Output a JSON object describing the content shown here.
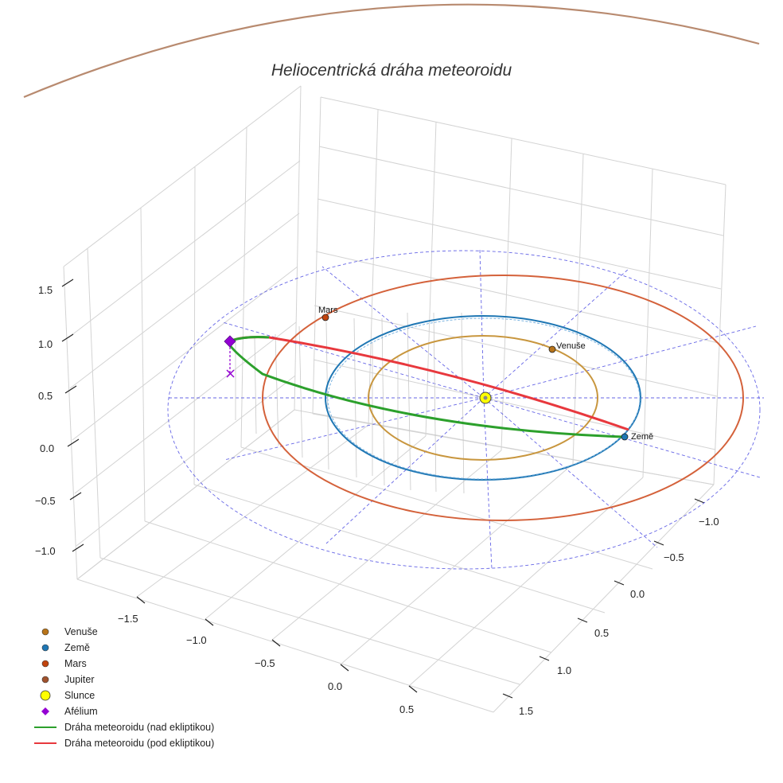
{
  "chart_data": {
    "type": "line3d",
    "title": "Heliocentrická dráha meteoroidu",
    "x_ticks": [
      "−1.5",
      "−1.0",
      "−0.5",
      "0.0",
      "0.5"
    ],
    "y_ticks": [
      "−1.0",
      "−0.5",
      "0.0",
      "0.5",
      "1.0",
      "1.5"
    ],
    "z_ticks": [
      "1.5",
      "1.0",
      "0.5",
      "0.0",
      "−0.5",
      "−1.0"
    ],
    "orbits": [
      {
        "name": "Venuše",
        "radius_au": 0.72,
        "color": "#c8963e"
      },
      {
        "name": "Země",
        "radius_au": 1.0,
        "color": "#1f77b4"
      },
      {
        "name": "Mars",
        "radius_au": 1.52,
        "color": "#d4613a"
      },
      {
        "name": "Jupiter",
        "radius_au": 5.2,
        "color": "#a0522d"
      }
    ],
    "planets": [
      {
        "name": "Venuše",
        "label": "Venuše",
        "color": "#b8741a"
      },
      {
        "name": "Země",
        "label": "Země",
        "color": "#1f77b4"
      },
      {
        "name": "Mars",
        "label": "Mars",
        "color": "#c1440e"
      }
    ],
    "sun": {
      "name": "Slunce",
      "color": "#ffff00"
    },
    "aphelion": {
      "name": "Afélium",
      "color": "#9400d3"
    },
    "meteoroid": {
      "above": {
        "name": "Dráha meteoroidu (nad ekliptikou)",
        "color": "#2ca02c"
      },
      "below": {
        "name": "Dráha meteoroidu (pod ekliptikou)",
        "color": "#e8383d"
      }
    },
    "ecliptic_grid_color": "#4040e0",
    "legend": [
      {
        "label": "Venuše",
        "marker": "circle",
        "color": "#b8741a"
      },
      {
        "label": "Země",
        "marker": "circle",
        "color": "#1f77b4"
      },
      {
        "label": "Mars",
        "marker": "circle",
        "color": "#c1440e"
      },
      {
        "label": "Jupiter",
        "marker": "circle",
        "color": "#a0522d"
      },
      {
        "label": "Slunce",
        "marker": "circle-large",
        "color": "#ffff00"
      },
      {
        "label": "Afélium",
        "marker": "diamond",
        "color": "#9400d3"
      },
      {
        "label": "Dráha meteoroidu (nad ekliptikou)",
        "marker": "line",
        "color": "#2ca02c"
      },
      {
        "label": "Dráha meteoroidu (pod ekliptikou)",
        "marker": "line",
        "color": "#e8383d"
      }
    ]
  }
}
